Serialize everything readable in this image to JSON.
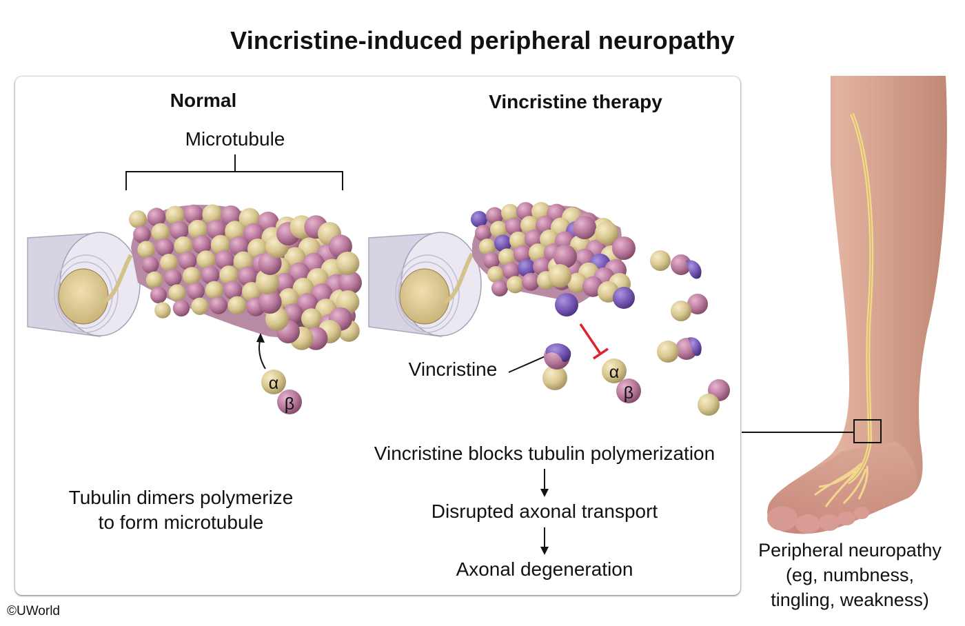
{
  "title": "Vincristine-induced peripheral neuropathy",
  "normal": {
    "heading": "Normal",
    "microtubule_label": "Microtubule",
    "alpha": "α",
    "beta": "β",
    "caption_line1": "Tubulin dimers polymerize",
    "caption_line2": "to form microtubule"
  },
  "therapy": {
    "heading": "Vincristine therapy",
    "vincristine_label": "Vincristine",
    "alpha": "α",
    "beta": "β",
    "steps": [
      "Vincristine blocks tubulin polymerization",
      "Disrupted axonal transport",
      "Axonal degeneration"
    ]
  },
  "foot": {
    "caption_line1": "Peripheral neuropathy",
    "caption_line2": "(eg, numbness,",
    "caption_line3": "tingling, weakness)"
  },
  "copyright": "©UWorld",
  "colors": {
    "alpha_tubulin": "#d8c690",
    "beta_tubulin": "#b8789c",
    "vincristine": "#7658b4",
    "inhibition": "#e0202c",
    "skin": "#d9a694",
    "nerve": "#f2d88c"
  }
}
